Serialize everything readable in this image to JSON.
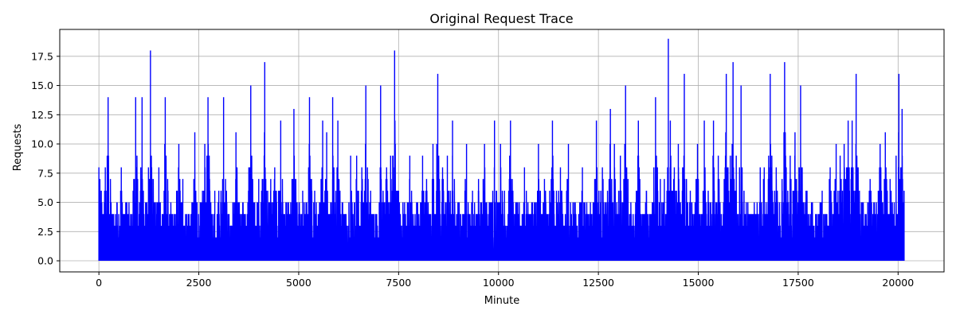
{
  "chart_data": {
    "type": "line",
    "title": "Original Request Trace",
    "xlabel": "Minute",
    "ylabel": "Requests",
    "xlim": [
      -980,
      21150
    ],
    "ylim": [
      -0.95,
      19.8
    ],
    "xticks": [
      0,
      2500,
      5000,
      7500,
      10000,
      12500,
      15000,
      17500,
      20000
    ],
    "yticks": [
      0.0,
      2.5,
      5.0,
      7.5,
      10.0,
      12.5,
      15.0,
      17.5
    ],
    "grid": true,
    "legend": "none",
    "color": "#0000ff",
    "series": [
      {
        "x_start": 0,
        "x_end": 20150,
        "min": 0,
        "peaks": [
          [
            0,
            8
          ],
          [
            60,
            6
          ],
          [
            160,
            8
          ],
          [
            230,
            14
          ],
          [
            300,
            4
          ],
          [
            450,
            5
          ],
          [
            560,
            8
          ],
          [
            700,
            5
          ],
          [
            920,
            14
          ],
          [
            1080,
            14
          ],
          [
            1200,
            5
          ],
          [
            1290,
            18
          ],
          [
            1500,
            8
          ],
          [
            1660,
            14
          ],
          [
            1800,
            3
          ],
          [
            2000,
            10
          ],
          [
            2100,
            7
          ],
          [
            2250,
            4
          ],
          [
            2400,
            11
          ],
          [
            2650,
            10
          ],
          [
            2730,
            14
          ],
          [
            2900,
            6
          ],
          [
            3000,
            6
          ],
          [
            3120,
            14
          ],
          [
            3300,
            3
          ],
          [
            3430,
            11
          ],
          [
            3600,
            5
          ],
          [
            3800,
            15
          ],
          [
            3900,
            5
          ],
          [
            4000,
            7
          ],
          [
            4150,
            17
          ],
          [
            4300,
            7
          ],
          [
            4400,
            8
          ],
          [
            4550,
            12
          ],
          [
            4700,
            5
          ],
          [
            4880,
            13
          ],
          [
            5000,
            4
          ],
          [
            5100,
            6
          ],
          [
            5270,
            14
          ],
          [
            5400,
            6
          ],
          [
            5600,
            12
          ],
          [
            5700,
            11
          ],
          [
            5850,
            14
          ],
          [
            5980,
            12
          ],
          [
            6100,
            5
          ],
          [
            6300,
            9
          ],
          [
            6450,
            9
          ],
          [
            6580,
            8
          ],
          [
            6680,
            15
          ],
          [
            6800,
            6
          ],
          [
            7050,
            15
          ],
          [
            7200,
            8
          ],
          [
            7300,
            9
          ],
          [
            7400,
            18
          ],
          [
            7500,
            6
          ],
          [
            7650,
            5
          ],
          [
            7780,
            9
          ],
          [
            7950,
            5
          ],
          [
            8100,
            9
          ],
          [
            8200,
            7
          ],
          [
            8360,
            10
          ],
          [
            8480,
            16
          ],
          [
            8600,
            8
          ],
          [
            8720,
            9
          ],
          [
            8850,
            12
          ],
          [
            9000,
            5
          ],
          [
            9200,
            10
          ],
          [
            9350,
            6
          ],
          [
            9500,
            7
          ],
          [
            9650,
            10
          ],
          [
            9800,
            5
          ],
          [
            9900,
            12
          ],
          [
            10050,
            10
          ],
          [
            10150,
            6
          ],
          [
            10300,
            12
          ],
          [
            10500,
            4
          ],
          [
            10650,
            8
          ],
          [
            10850,
            5
          ],
          [
            11000,
            10
          ],
          [
            11150,
            7
          ],
          [
            11350,
            12
          ],
          [
            11450,
            6
          ],
          [
            11550,
            8
          ],
          [
            11750,
            10
          ],
          [
            11900,
            5
          ],
          [
            12100,
            8
          ],
          [
            12300,
            5
          ],
          [
            12450,
            12
          ],
          [
            12600,
            8
          ],
          [
            12800,
            13
          ],
          [
            12900,
            10
          ],
          [
            13050,
            9
          ],
          [
            13180,
            15
          ],
          [
            13300,
            4
          ],
          [
            13500,
            12
          ],
          [
            13700,
            6
          ],
          [
            13850,
            5
          ],
          [
            13930,
            14
          ],
          [
            14050,
            7
          ],
          [
            14150,
            7
          ],
          [
            14250,
            19
          ],
          [
            14300,
            12
          ],
          [
            14400,
            8
          ],
          [
            14500,
            10
          ],
          [
            14650,
            16
          ],
          [
            14800,
            6
          ],
          [
            14980,
            10
          ],
          [
            15150,
            12
          ],
          [
            15250,
            5
          ],
          [
            15380,
            12
          ],
          [
            15500,
            9
          ],
          [
            15700,
            16
          ],
          [
            15800,
            9
          ],
          [
            15870,
            17
          ],
          [
            15950,
            9
          ],
          [
            16070,
            15
          ],
          [
            16200,
            5
          ],
          [
            16400,
            3
          ],
          [
            16550,
            8
          ],
          [
            16650,
            8
          ],
          [
            16800,
            16
          ],
          [
            16950,
            8
          ],
          [
            17100,
            6
          ],
          [
            17160,
            17
          ],
          [
            17300,
            9
          ],
          [
            17420,
            11
          ],
          [
            17560,
            15
          ],
          [
            17700,
            6
          ],
          [
            17850,
            5
          ],
          [
            18000,
            3
          ],
          [
            18100,
            6
          ],
          [
            18300,
            8
          ],
          [
            18450,
            10
          ],
          [
            18550,
            9
          ],
          [
            18650,
            10
          ],
          [
            18750,
            12
          ],
          [
            18850,
            12
          ],
          [
            18950,
            16
          ],
          [
            19100,
            5
          ],
          [
            19300,
            7
          ],
          [
            19450,
            4
          ],
          [
            19550,
            10
          ],
          [
            19680,
            11
          ],
          [
            19800,
            7
          ],
          [
            19950,
            9
          ],
          [
            20020,
            16
          ],
          [
            20100,
            13
          ],
          [
            20150,
            6
          ]
        ]
      }
    ]
  }
}
